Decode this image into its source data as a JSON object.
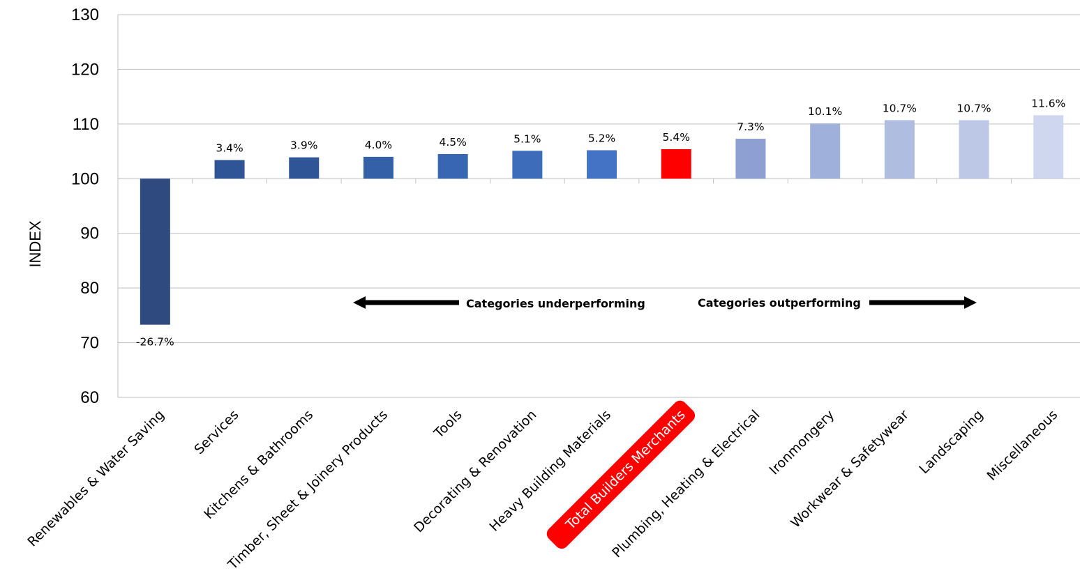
{
  "chart_data": {
    "type": "bar",
    "baseline": 100,
    "ylabel": "INDEX",
    "ylim": [
      60,
      130
    ],
    "yticks": [
      60,
      70,
      80,
      90,
      100,
      110,
      120,
      130
    ],
    "grid": true,
    "categories": [
      "Renewables & Water Saving",
      "Services",
      "Kitchens & Bathrooms",
      "Timber, Sheet & Joinery Products",
      "Tools",
      "Decorating & Renovation",
      "Heavy Building Materials",
      "Total Builders Merchants",
      "Plumbing, Heating & Electrical",
      "Ironmongery",
      "Workwear & Safetywear",
      "Landscaping",
      "Miscellaneous"
    ],
    "values": [
      73.3,
      103.4,
      103.9,
      104.0,
      104.5,
      105.1,
      105.2,
      105.4,
      107.3,
      110.1,
      110.7,
      110.7,
      111.6
    ],
    "data_labels": [
      "-26.7%",
      "3.4%",
      "3.9%",
      "4.0%",
      "4.5%",
      "5.1%",
      "5.2%",
      "5.4%",
      "7.3%",
      "10.1%",
      "10.7%",
      "10.7%",
      "11.6%"
    ],
    "colors": [
      "#2e4a7f",
      "#2f5597",
      "#2f5597",
      "#3460a8",
      "#3866b2",
      "#3c6cba",
      "#4472c4",
      "#ff0000",
      "#8ea0d2",
      "#9fb0da",
      "#afbde0",
      "#bcc8e6",
      "#ced7ee"
    ],
    "highlight_category": "Total Builders Merchants",
    "highlight_color": "#ff0000",
    "annotations": {
      "left": "Categories underperforming",
      "right": "Categories outperforming"
    }
  }
}
